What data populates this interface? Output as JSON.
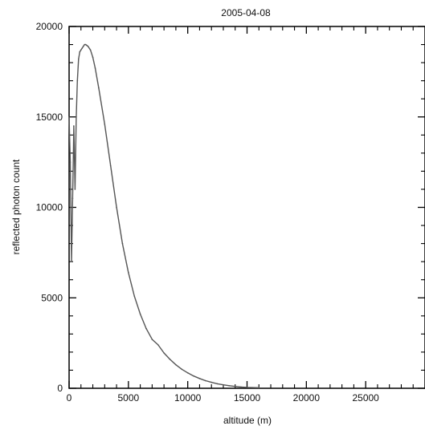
{
  "chart_data": {
    "type": "line",
    "title": "2005-04-08",
    "xlabel": "altitude (m)",
    "ylabel": "reflected photon count",
    "xlim": [
      0,
      30000
    ],
    "ylim": [
      0,
      20000
    ],
    "xticks": [
      0,
      5000,
      10000,
      15000,
      20000,
      25000
    ],
    "yticks": [
      0,
      5000,
      10000,
      15000,
      20000
    ],
    "grid": false,
    "series": [
      {
        "color": "#555555",
        "x": [
          0,
          100,
          200,
          300,
          400,
          500,
          600,
          700,
          800,
          900,
          1000,
          1100,
          1200,
          1300,
          1400,
          1500,
          1600,
          1800,
          2000,
          2200,
          2500,
          3000,
          3500,
          4000,
          4500,
          5000,
          5500,
          6000,
          6500,
          7000,
          7500,
          8000,
          8500,
          9000,
          9500,
          10000,
          10500,
          11000,
          11500,
          12000,
          12500,
          13000,
          13500,
          14000,
          14500,
          15000,
          16000
        ],
        "y": [
          15000,
          12500,
          7000,
          10500,
          14500,
          11000,
          15000,
          17000,
          18200,
          18600,
          18700,
          18800,
          18900,
          19000,
          19000,
          18950,
          18900,
          18700,
          18300,
          17700,
          16600,
          14600,
          12300,
          10000,
          8000,
          6400,
          5100,
          4100,
          3300,
          2700,
          2400,
          1950,
          1600,
          1300,
          1050,
          850,
          680,
          540,
          420,
          330,
          250,
          190,
          140,
          100,
          70,
          50,
          30
        ]
      }
    ]
  }
}
